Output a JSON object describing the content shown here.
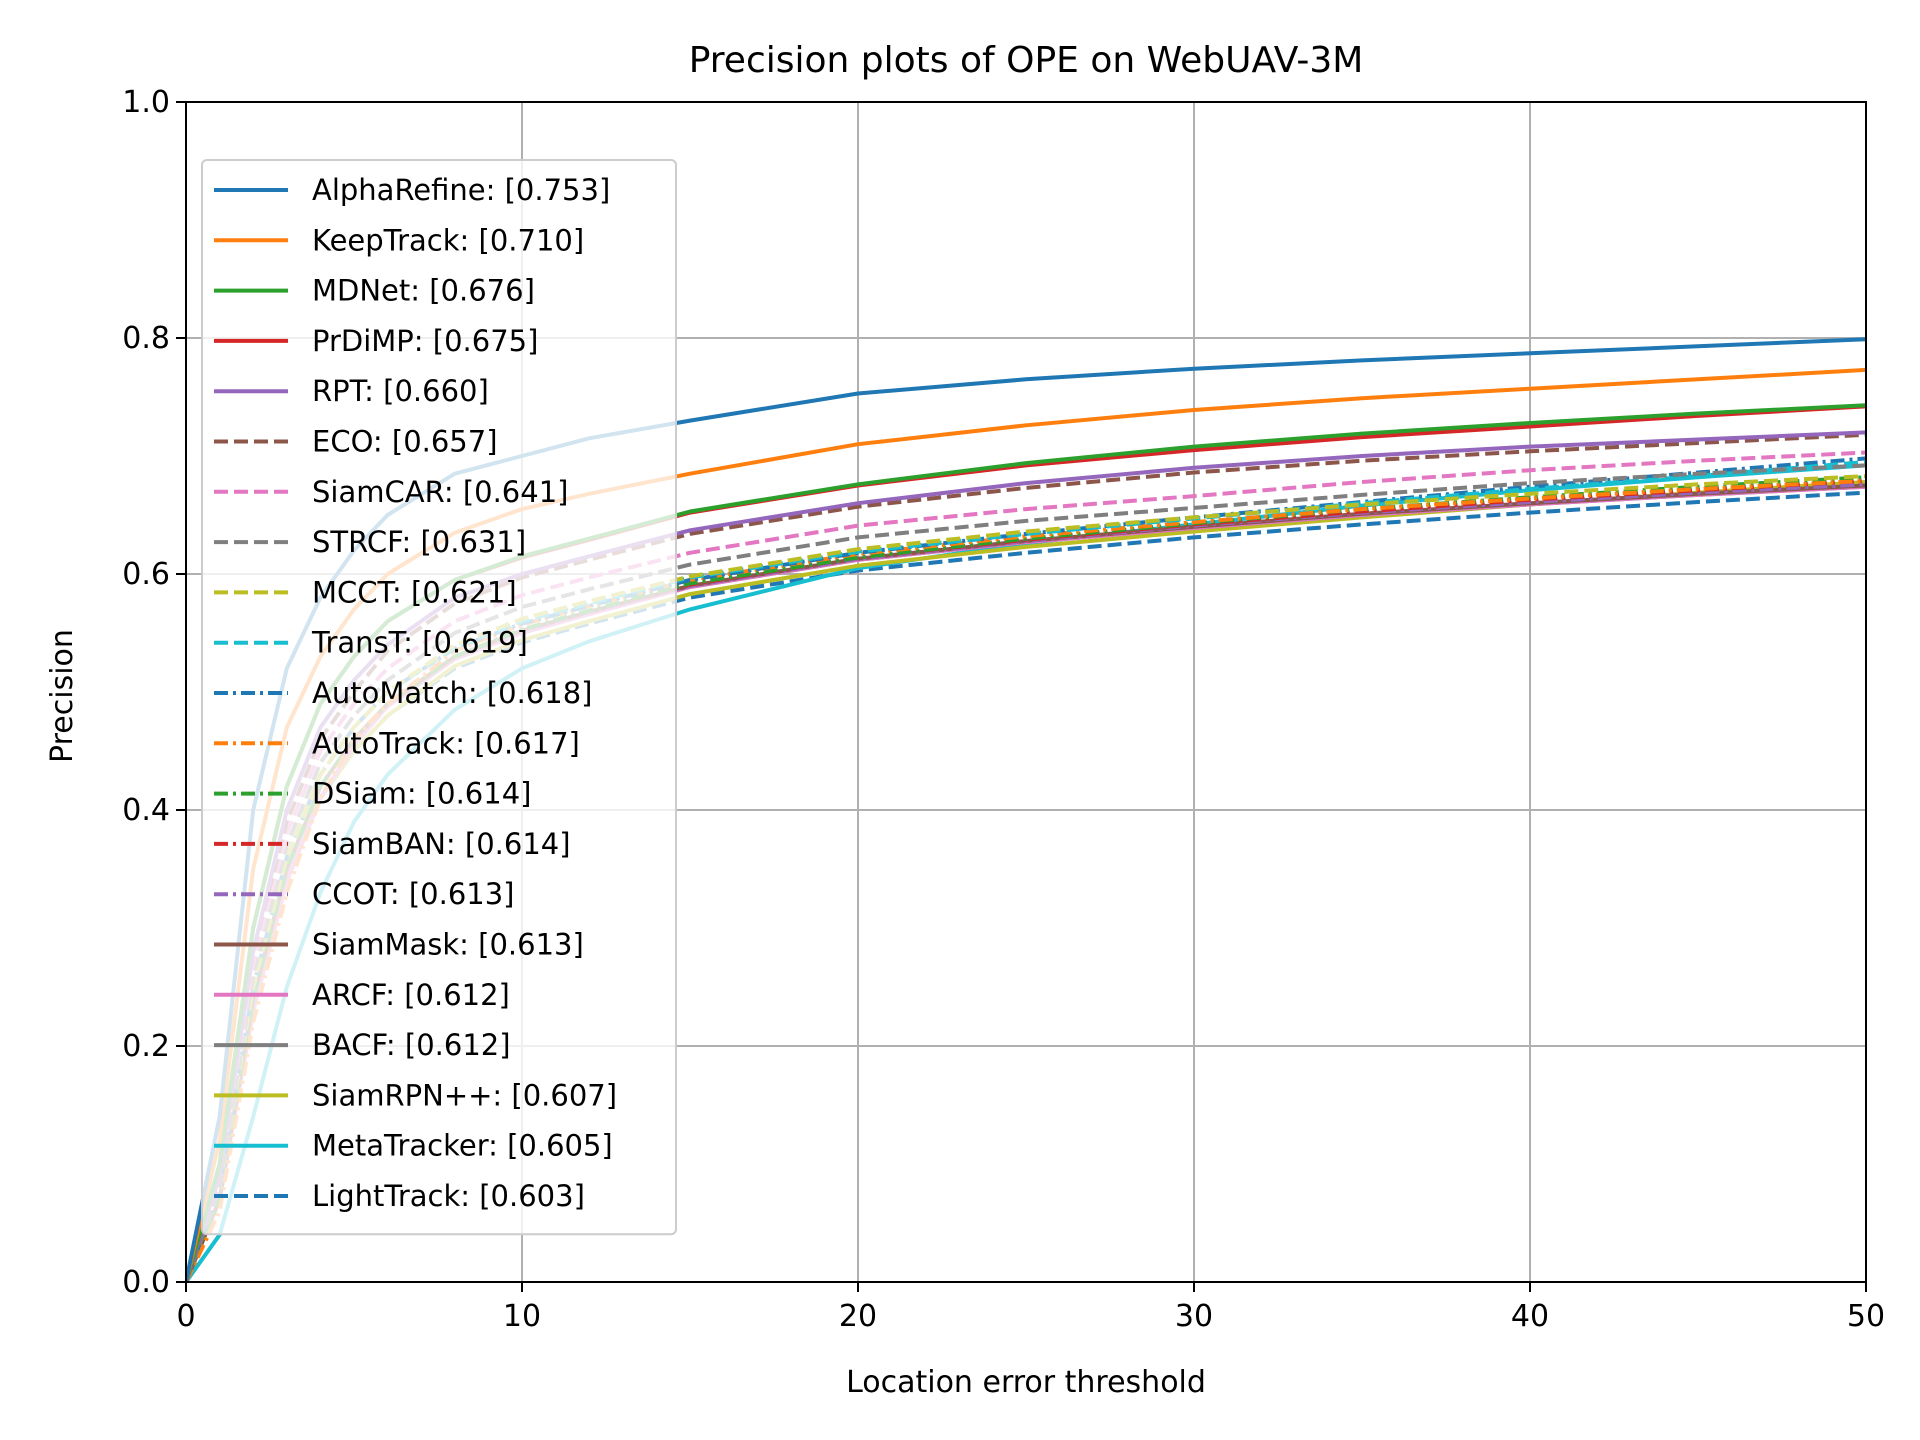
{
  "chart_data": {
    "type": "line",
    "title": "Precision plots of OPE on WebUAV-3M",
    "xlabel": "Location error threshold",
    "ylabel": "Precision",
    "xlim": [
      0,
      50
    ],
    "ylim": [
      0,
      1.0
    ],
    "xticks": [
      0,
      10,
      20,
      30,
      40,
      50
    ],
    "xtick_labels": [
      "0",
      "10",
      "20",
      "30",
      "40",
      "50"
    ],
    "yticks": [
      0.0,
      0.2,
      0.4,
      0.6,
      0.8,
      1.0
    ],
    "ytick_labels": [
      "0.0",
      "0.2",
      "0.4",
      "0.6",
      "0.8",
      "1.0"
    ],
    "grid": true,
    "legend_position": "upper-left",
    "x": [
      0,
      1,
      2,
      3,
      4,
      5,
      6,
      8,
      10,
      12,
      15,
      20,
      25,
      30,
      35,
      40,
      45,
      50
    ],
    "series": [
      {
        "name": "AlphaRefine: [0.753]",
        "color": "#1f77b4",
        "dash": "solid",
        "values": [
          0.0,
          0.14,
          0.4,
          0.52,
          0.58,
          0.62,
          0.65,
          0.685,
          0.7,
          0.715,
          0.73,
          0.753,
          0.765,
          0.774,
          0.781,
          0.787,
          0.793,
          0.799
        ]
      },
      {
        "name": "KeepTrack: [0.710]",
        "color": "#ff7f0e",
        "dash": "solid",
        "values": [
          0.0,
          0.12,
          0.35,
          0.47,
          0.53,
          0.57,
          0.6,
          0.635,
          0.655,
          0.668,
          0.685,
          0.71,
          0.726,
          0.739,
          0.749,
          0.757,
          0.765,
          0.773
        ]
      },
      {
        "name": "MDNet: [0.676]",
        "color": "#2ca02c",
        "dash": "solid",
        "values": [
          0.0,
          0.1,
          0.3,
          0.42,
          0.49,
          0.53,
          0.56,
          0.595,
          0.615,
          0.63,
          0.653,
          0.676,
          0.694,
          0.708,
          0.719,
          0.728,
          0.736,
          0.743
        ]
      },
      {
        "name": "PrDiMP: [0.675]",
        "color": "#d62728",
        "dash": "solid",
        "values": [
          0.0,
          0.1,
          0.3,
          0.42,
          0.49,
          0.53,
          0.56,
          0.595,
          0.614,
          0.629,
          0.652,
          0.675,
          0.692,
          0.705,
          0.716,
          0.725,
          0.734,
          0.742
        ]
      },
      {
        "name": "RPT: [0.660]",
        "color": "#9467bd",
        "dash": "solid",
        "values": [
          0.0,
          0.09,
          0.28,
          0.4,
          0.47,
          0.51,
          0.54,
          0.58,
          0.6,
          0.615,
          0.637,
          0.66,
          0.677,
          0.69,
          0.7,
          0.708,
          0.714,
          0.72
        ]
      },
      {
        "name": "ECO: [0.657]",
        "color": "#8c564b",
        "dash": "dashed",
        "values": [
          0.0,
          0.09,
          0.28,
          0.39,
          0.46,
          0.5,
          0.535,
          0.575,
          0.597,
          0.612,
          0.634,
          0.657,
          0.673,
          0.686,
          0.696,
          0.704,
          0.711,
          0.718
        ]
      },
      {
        "name": "SiamCAR: [0.641]",
        "color": "#e377c2",
        "dash": "dashed",
        "values": [
          0.0,
          0.09,
          0.27,
          0.38,
          0.45,
          0.49,
          0.52,
          0.56,
          0.582,
          0.597,
          0.618,
          0.641,
          0.655,
          0.666,
          0.678,
          0.688,
          0.696,
          0.703
        ]
      },
      {
        "name": "STRCF: [0.631]",
        "color": "#7f7f7f",
        "dash": "dashed",
        "values": [
          0.0,
          0.08,
          0.26,
          0.37,
          0.44,
          0.48,
          0.51,
          0.55,
          0.572,
          0.587,
          0.608,
          0.631,
          0.645,
          0.656,
          0.667,
          0.677,
          0.685,
          0.692
        ]
      },
      {
        "name": "MCCT: [0.621]",
        "color": "#bcbd22",
        "dash": "dashed",
        "values": [
          0.0,
          0.08,
          0.25,
          0.36,
          0.43,
          0.47,
          0.5,
          0.54,
          0.562,
          0.577,
          0.598,
          0.621,
          0.636,
          0.648,
          0.659,
          0.668,
          0.676,
          0.683
        ]
      },
      {
        "name": "TransT: [0.619]",
        "color": "#17becf",
        "dash": "dashed",
        "values": [
          0.0,
          0.08,
          0.25,
          0.36,
          0.43,
          0.47,
          0.5,
          0.538,
          0.56,
          0.575,
          0.597,
          0.619,
          0.634,
          0.647,
          0.66,
          0.672,
          0.683,
          0.695
        ]
      },
      {
        "name": "AutoMatch: [0.618]",
        "color": "#1f77b4",
        "dash": "dashdot",
        "values": [
          0.0,
          0.08,
          0.25,
          0.36,
          0.43,
          0.47,
          0.5,
          0.537,
          0.558,
          0.573,
          0.595,
          0.618,
          0.634,
          0.648,
          0.661,
          0.674,
          0.686,
          0.698
        ]
      },
      {
        "name": "AutoTrack: [0.617]",
        "color": "#ff7f0e",
        "dash": "dashdot",
        "values": [
          0.0,
          0.06,
          0.22,
          0.33,
          0.41,
          0.46,
          0.49,
          0.535,
          0.557,
          0.573,
          0.595,
          0.617,
          0.632,
          0.644,
          0.655,
          0.664,
          0.672,
          0.679
        ]
      },
      {
        "name": "DSiam: [0.614]",
        "color": "#2ca02c",
        "dash": "dashdot",
        "values": [
          0.0,
          0.07,
          0.24,
          0.35,
          0.42,
          0.46,
          0.49,
          0.53,
          0.553,
          0.569,
          0.592,
          0.614,
          0.63,
          0.643,
          0.655,
          0.665,
          0.674,
          0.682
        ]
      },
      {
        "name": "SiamBAN: [0.614]",
        "color": "#d62728",
        "dash": "dashdot",
        "values": [
          0.0,
          0.07,
          0.24,
          0.35,
          0.42,
          0.46,
          0.49,
          0.53,
          0.553,
          0.569,
          0.591,
          0.614,
          0.629,
          0.642,
          0.653,
          0.663,
          0.671,
          0.679
        ]
      },
      {
        "name": "CCOT: [0.613]",
        "color": "#9467bd",
        "dash": "dashdot",
        "values": [
          0.0,
          0.07,
          0.24,
          0.35,
          0.42,
          0.46,
          0.49,
          0.53,
          0.552,
          0.568,
          0.59,
          0.613,
          0.628,
          0.641,
          0.652,
          0.661,
          0.669,
          0.676
        ]
      },
      {
        "name": "SiamMask: [0.613]",
        "color": "#8c564b",
        "dash": "solid",
        "values": [
          0.0,
          0.07,
          0.24,
          0.35,
          0.42,
          0.46,
          0.49,
          0.53,
          0.552,
          0.568,
          0.59,
          0.613,
          0.628,
          0.64,
          0.651,
          0.66,
          0.668,
          0.675
        ]
      },
      {
        "name": "ARCF: [0.612]",
        "color": "#e377c2",
        "dash": "solid",
        "values": [
          0.0,
          0.07,
          0.23,
          0.34,
          0.41,
          0.455,
          0.488,
          0.528,
          0.55,
          0.566,
          0.589,
          0.612,
          0.627,
          0.639,
          0.65,
          0.659,
          0.667,
          0.674
        ]
      },
      {
        "name": "BACF: [0.612]",
        "color": "#7f7f7f",
        "dash": "solid",
        "values": [
          0.0,
          0.07,
          0.23,
          0.34,
          0.41,
          0.455,
          0.488,
          0.528,
          0.55,
          0.566,
          0.589,
          0.612,
          0.627,
          0.639,
          0.65,
          0.659,
          0.667,
          0.674
        ]
      },
      {
        "name": "SiamRPN++: [0.607]",
        "color": "#bcbd22",
        "dash": "solid",
        "values": [
          0.0,
          0.07,
          0.23,
          0.34,
          0.41,
          0.45,
          0.48,
          0.522,
          0.544,
          0.56,
          0.583,
          0.607,
          0.623,
          0.636,
          0.648,
          0.659,
          0.669,
          0.678
        ]
      },
      {
        "name": "MetaTracker: [0.605]",
        "color": "#17becf",
        "dash": "solid",
        "values": [
          0.0,
          0.04,
          0.14,
          0.25,
          0.33,
          0.39,
          0.43,
          0.485,
          0.52,
          0.543,
          0.57,
          0.605,
          0.626,
          0.642,
          0.658,
          0.671,
          0.682,
          0.692
        ]
      },
      {
        "name": "LightTrack: [0.603]",
        "color": "#1f77b4",
        "dash": "dashed",
        "values": [
          0.0,
          0.07,
          0.23,
          0.34,
          0.41,
          0.45,
          0.48,
          0.52,
          0.542,
          0.558,
          0.58,
          0.603,
          0.618,
          0.631,
          0.642,
          0.652,
          0.661,
          0.669
        ]
      }
    ]
  }
}
